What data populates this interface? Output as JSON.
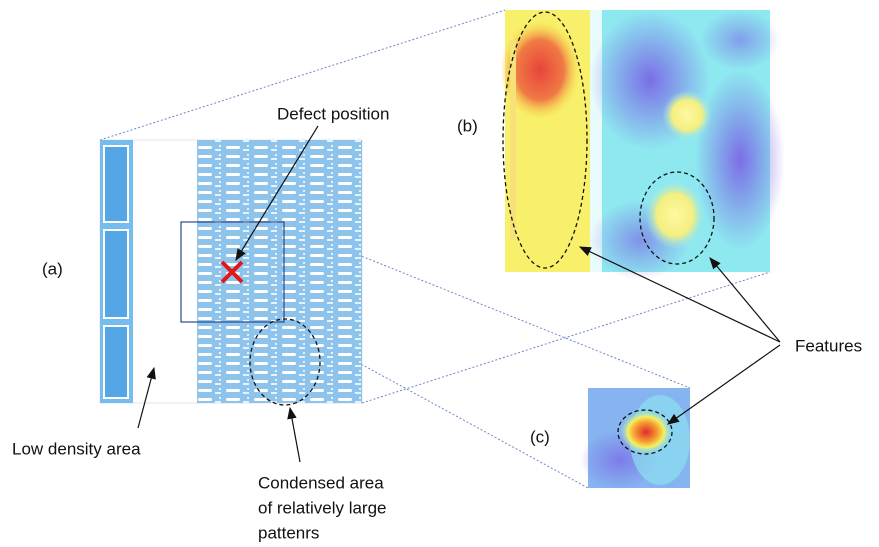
{
  "labels": {
    "a": "(a)",
    "b": "(b)",
    "c": "(c)"
  },
  "annotations": {
    "defect": "Defect position",
    "features": "Features",
    "low_density": "Low density area",
    "condensed": [
      "Condensed area",
      "of relatively large",
      "pattenrs"
    ]
  }
}
